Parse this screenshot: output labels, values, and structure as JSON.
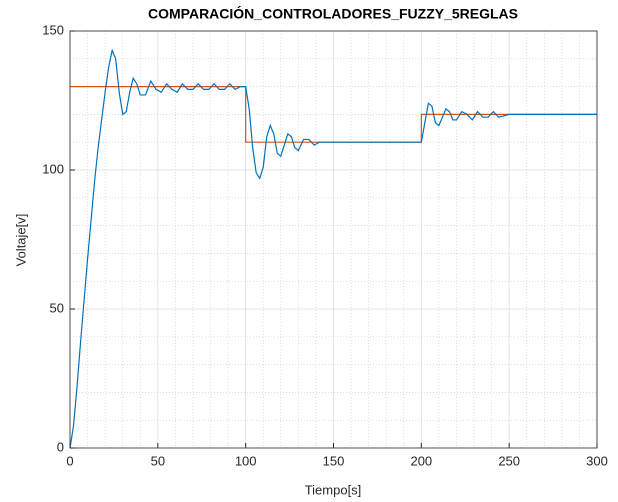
{
  "chart_data": {
    "type": "line",
    "title": "COMPARACIÓN_CONTROLADORES_FUZZY_5REGLAS",
    "x_label": "Tiempo[s]",
    "y_label": "Voltaje[v]",
    "xlim": [
      0,
      300
    ],
    "ylim": [
      0,
      150
    ],
    "xticks": [
      0,
      50,
      100,
      150,
      200,
      250,
      300
    ],
    "yticks": [
      0,
      50,
      100,
      150
    ],
    "grid": true,
    "minor_grid": true,
    "series": [
      {
        "color": "#d95319",
        "x": [
          0,
          100,
          100,
          200,
          200,
          300
        ],
        "values": [
          130,
          130,
          110,
          110,
          120,
          120
        ]
      },
      {
        "color": "#0072bd",
        "x": [
          0,
          2,
          4,
          6,
          8,
          10,
          12,
          14,
          16,
          18,
          20,
          22,
          24,
          26,
          28,
          30,
          32,
          34,
          36,
          38,
          40,
          43,
          46,
          49,
          52,
          55,
          58,
          61,
          64,
          67,
          70,
          73,
          76,
          79,
          82,
          85,
          88,
          91,
          94,
          97,
          100,
          102,
          104,
          106,
          108,
          110,
          112,
          114,
          116,
          118,
          120,
          122,
          124,
          126,
          128,
          130,
          133,
          136,
          139,
          142,
          145,
          150,
          160,
          170,
          180,
          190,
          200,
          202,
          204,
          206,
          208,
          210,
          212,
          214,
          216,
          218,
          220,
          223,
          226,
          229,
          232,
          235,
          238,
          241,
          244,
          250,
          260,
          270,
          280,
          290,
          300
        ],
        "values": [
          0,
          8,
          22,
          38,
          53,
          68,
          82,
          96,
          108,
          118,
          128,
          137,
          143,
          140,
          128,
          120,
          121,
          128,
          133,
          131,
          127,
          127,
          132,
          129,
          128,
          131,
          129,
          128,
          131,
          129,
          129,
          131,
          129,
          129,
          131,
          129,
          129,
          131,
          129,
          130,
          130,
          122,
          108,
          99,
          97,
          101,
          112,
          116,
          113,
          106,
          105,
          109,
          113,
          112,
          108,
          107,
          111,
          111,
          109,
          110,
          110,
          110,
          110,
          110,
          110,
          110,
          110,
          117,
          124,
          123,
          117,
          116,
          119,
          122,
          121,
          118,
          118,
          121,
          120,
          118,
          121,
          119,
          119,
          121,
          119,
          120,
          120,
          120,
          120,
          120,
          120
        ]
      }
    ]
  }
}
